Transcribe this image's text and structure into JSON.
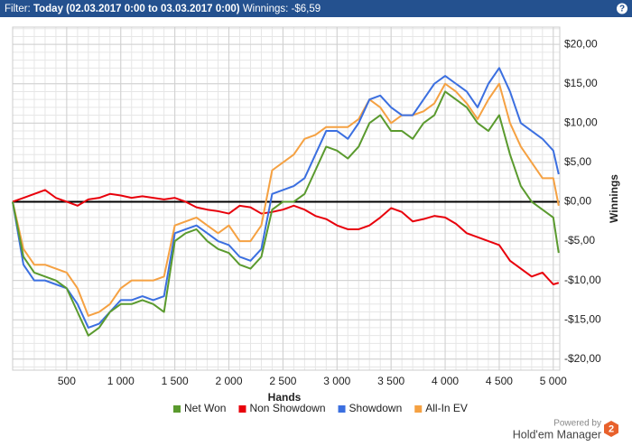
{
  "header": {
    "filter_label": "Filter:",
    "filter_value": "Today (02.03.2017 0:00 to 03.03.2017 0:00)",
    "winnings_label": "Winnings:",
    "winnings_value": "-$6,59",
    "help": "?"
  },
  "chart_data": {
    "type": "line",
    "xlabel": "Hands",
    "ylabel": "Winnings",
    "x": [
      0,
      100,
      200,
      300,
      400,
      500,
      600,
      700,
      800,
      900,
      1000,
      1100,
      1200,
      1300,
      1400,
      1500,
      1600,
      1700,
      1800,
      1900,
      2000,
      2100,
      2200,
      2300,
      2400,
      2500,
      2600,
      2700,
      2800,
      2900,
      3000,
      3100,
      3200,
      3300,
      3400,
      3500,
      3600,
      3700,
      3800,
      3900,
      4000,
      4100,
      4200,
      4300,
      4400,
      4500,
      4600,
      4700,
      4800,
      4900,
      5000,
      5050
    ],
    "series": [
      {
        "name": "Net Won",
        "color": "#5a9a2e",
        "values": [
          0,
          -7,
          -9,
          -9.5,
          -10,
          -11,
          -14,
          -17,
          -16,
          -14,
          -13,
          -13,
          -12.5,
          -13,
          -14,
          -5,
          -4,
          -3.5,
          -5,
          -6,
          -6.5,
          -8,
          -8.5,
          -7,
          -1,
          0,
          0,
          1,
          4,
          7,
          6.5,
          5.5,
          7,
          10,
          11,
          9,
          9,
          8,
          10,
          11,
          14,
          13,
          12,
          10,
          9,
          11,
          6,
          2,
          0,
          -1,
          -2,
          -6.5
        ]
      },
      {
        "name": "Non Showdown",
        "color": "#e8000b",
        "values": [
          0,
          0.5,
          1,
          1.5,
          0.5,
          0,
          -0.5,
          0.3,
          0.5,
          1,
          0.8,
          0.5,
          0.7,
          0.5,
          0.3,
          0.5,
          0,
          -0.7,
          -1,
          -1.2,
          -1.5,
          -0.5,
          -0.7,
          -1.5,
          -1.3,
          -1,
          -0.5,
          -1,
          -1.8,
          -2.2,
          -3,
          -3.5,
          -3.5,
          -3,
          -2,
          -0.8,
          -1.3,
          -2.5,
          -2.2,
          -1.8,
          -2,
          -2.8,
          -4,
          -4.5,
          -5,
          -5.5,
          -7.5,
          -8.5,
          -9.5,
          -9,
          -10.5,
          -10.3
        ]
      },
      {
        "name": "Showdown",
        "color": "#3b6fe0",
        "values": [
          0,
          -8,
          -10,
          -10,
          -10.5,
          -11,
          -13,
          -16,
          -15.5,
          -14,
          -12.5,
          -12.5,
          -12,
          -12.5,
          -12,
          -4,
          -3.5,
          -3,
          -4,
          -5,
          -5.5,
          -7,
          -7.5,
          -6,
          1,
          1.5,
          2,
          3,
          6,
          9,
          9,
          8,
          10,
          13,
          13.5,
          12,
          11,
          11,
          13,
          15,
          16,
          15,
          14,
          12,
          15,
          17,
          14,
          10,
          9,
          8,
          6.5,
          3.5
        ]
      },
      {
        "name": "All-In EV",
        "color": "#f5a142",
        "values": [
          0,
          -6,
          -8,
          -8,
          -8.5,
          -9,
          -11,
          -14.5,
          -14,
          -13,
          -11,
          -10,
          -10,
          -10,
          -9.5,
          -3,
          -2.5,
          -2,
          -3,
          -4,
          -3,
          -5,
          -5,
          -3,
          4,
          5,
          6,
          8,
          8.5,
          9.5,
          9.5,
          9.5,
          10.5,
          13,
          12,
          10,
          11,
          11,
          11.5,
          12.5,
          15,
          14,
          12.5,
          10.5,
          13,
          15,
          10,
          7,
          5,
          3,
          3,
          -0.5
        ]
      }
    ],
    "xlim": [
      0,
      5060
    ],
    "xticks": [
      500,
      {
        "value": 1000,
        "label": "1 000"
      },
      {
        "value": 1500,
        "label": "1 500"
      },
      {
        "value": 2000,
        "label": "2 000"
      },
      {
        "value": 2500,
        "label": "2 500"
      },
      {
        "value": 3000,
        "label": "3 000"
      },
      {
        "value": 3500,
        "label": "3 500"
      },
      {
        "value": 4000,
        "label": "4 000"
      },
      {
        "value": 4500,
        "label": "4 500"
      },
      {
        "value": 5000,
        "label": "5 000"
      }
    ],
    "ylim": [
      -21.4,
      22.2
    ],
    "yticks": [
      {
        "value": 20,
        "label": "$20,00"
      },
      {
        "value": 15,
        "label": "$15,00"
      },
      {
        "value": 10,
        "label": "$10,00"
      },
      {
        "value": 5,
        "label": "$5,00"
      },
      {
        "value": 0,
        "label": "$0,00"
      },
      {
        "value": -5,
        "label": "-$5,00"
      },
      {
        "value": -10,
        "label": "-$10,00"
      },
      {
        "value": -15,
        "label": "-$15,00"
      },
      {
        "value": -20,
        "label": "-$20,00"
      }
    ],
    "grid": true,
    "legend": "bottom"
  },
  "branding": {
    "powered": "Powered by",
    "product": "Hold'em Manager",
    "version": "2"
  }
}
